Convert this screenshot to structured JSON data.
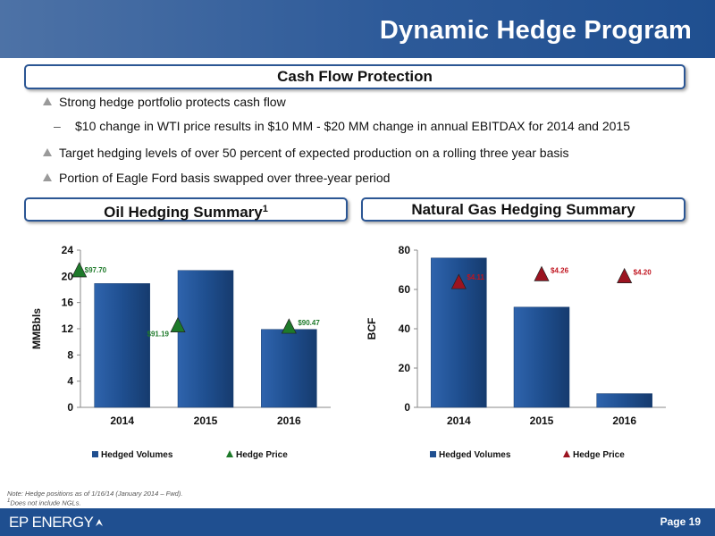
{
  "header": {
    "title": "Dynamic Hedge Program"
  },
  "cash_flow": {
    "title": "Cash Flow Protection",
    "bullets": [
      "Strong hedge portfolio protects cash flow",
      "$10 change in WTI price results in $10 MM - $20 MM change in annual EBITDAX for 2014 and 2015",
      "Target hedging levels of over 50 percent of expected production on a rolling three year basis",
      "Portion of Eagle Ford basis swapped over three-year period"
    ]
  },
  "oil_panel": {
    "title": "Oil Hedging Summary",
    "title_sup": "1"
  },
  "gas_panel": {
    "title": "Natural Gas Hedging Summary"
  },
  "chart_data": [
    {
      "type": "bar",
      "categories": [
        "2014",
        "2015",
        "2016"
      ],
      "series": [
        {
          "name": "Hedged Volumes",
          "values": [
            18.9,
            20.9,
            11.9
          ]
        },
        {
          "name": "Hedge Price",
          "values": [
            97.7,
            91.19,
            90.47
          ]
        }
      ],
      "price_labels": [
        "$97.70",
        "$91.19",
        "$90.47"
      ],
      "marker_levels": [
        21.0,
        12.6,
        12.4
      ],
      "ylabel": "MMBbls",
      "ylim": [
        0,
        24
      ],
      "yticks": [
        "0",
        "4",
        "8",
        "12",
        "16",
        "20",
        "24"
      ],
      "legend": [
        "Hedged Volumes",
        "Hedge Price"
      ],
      "legend_position": "bottom",
      "colors": {
        "bar": "#1f4f90",
        "marker": "#1e7a2a",
        "label": "#1e7a2a"
      }
    },
    {
      "type": "bar",
      "categories": [
        "2014",
        "2015",
        "2016"
      ],
      "series": [
        {
          "name": "Hedged Volumes",
          "values": [
            76,
            51,
            7
          ]
        },
        {
          "name": "Hedge Price",
          "values": [
            4.11,
            4.26,
            4.2
          ]
        }
      ],
      "price_labels": [
        "$4.11",
        "$4.26",
        "$4.20"
      ],
      "marker_levels": [
        64,
        68,
        67
      ],
      "ylabel": "BCF",
      "ylim": [
        0,
        80
      ],
      "yticks": [
        "0",
        "20",
        "40",
        "60",
        "80"
      ],
      "legend": [
        "Hedged Volumes",
        "Hedge Price"
      ],
      "legend_position": "bottom",
      "colors": {
        "bar": "#1f4f90",
        "marker": "#9b1420",
        "label": "#c0141f"
      }
    }
  ],
  "notes": [
    "Note: Hedge positions as of 1/16/14 (January 2014 – Fwd).",
    "Does not include NGLs."
  ],
  "notes_sup": "1",
  "footer": {
    "logo": "EP ENERGY",
    "page": "Page 19"
  }
}
